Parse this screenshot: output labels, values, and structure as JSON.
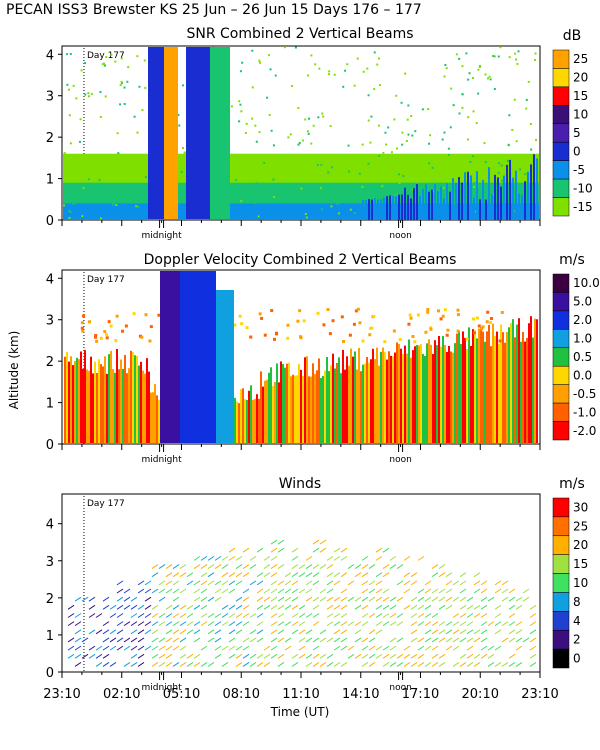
{
  "header": {
    "title": "PECAN ISS3 Brewster KS   25 Jun – 26 Jun 15 Days 176 – 177"
  },
  "chart_data": [
    {
      "type": "heatmap",
      "title": "SNR Combined 2 Vertical Beams",
      "ylabel": "",
      "ylim": [
        0,
        4.2
      ],
      "yticks": [
        "0",
        "1",
        "2",
        "3",
        "4"
      ],
      "colorbar_unit": "dB",
      "colorbar_labels": [
        "25",
        "20",
        "15",
        "10",
        "5",
        "0",
        "-5",
        "-10",
        "-15"
      ],
      "colorbar_colors": [
        "#ffa200",
        "#ffd700",
        "#ff0000",
        "#3a1078",
        "#4a1fae",
        "#1a2dd0",
        "#0a90e8",
        "#18c470",
        "#7fe000"
      ],
      "markers": {
        "day_label": "Day 177",
        "midnight": "midnight",
        "noon": "noon"
      }
    },
    {
      "type": "heatmap",
      "title": "Doppler Velocity Combined 2 Vertical Beams",
      "ylabel": "Altitude (km)",
      "ylim": [
        0,
        4.2
      ],
      "yticks": [
        "0",
        "1",
        "2",
        "3",
        "4"
      ],
      "colorbar_unit": "m/s",
      "colorbar_labels": [
        "10.0",
        "5.0",
        "2.0",
        "1.0",
        "0.5",
        "0.0",
        "-0.5",
        "-1.0",
        "-2.0"
      ],
      "colorbar_colors": [
        "#3a0040",
        "#3a10a0",
        "#1030e0",
        "#10a0e0",
        "#20c040",
        "#ffd700",
        "#ffa000",
        "#ff6000",
        "#ff0000"
      ],
      "markers": {
        "day_label": "Day 177",
        "midnight": "midnight",
        "noon": "noon"
      }
    },
    {
      "type": "scatter",
      "title": "Winds",
      "ylabel": "",
      "ylim": [
        0,
        4.8
      ],
      "yticks": [
        "0",
        "1",
        "2",
        "3",
        "4"
      ],
      "xlabel": "Time (UT)",
      "xticks": [
        "23:10",
        "02:10",
        "05:10",
        "08:10",
        "11:10",
        "14:10",
        "17:10",
        "20:10",
        "23:10"
      ],
      "colorbar_unit": "m/s",
      "colorbar_labels": [
        "30",
        "25",
        "20",
        "15",
        "10",
        "8",
        "4",
        "2",
        "0"
      ],
      "colorbar_colors": [
        "#ff0000",
        "#ff7000",
        "#ffb000",
        "#a0e040",
        "#40e060",
        "#10a0e0",
        "#2040d0",
        "#3a1080",
        "#000000"
      ],
      "markers": {
        "day_label": "Day 177",
        "midnight": "midnight",
        "noon": "noon"
      }
    }
  ]
}
